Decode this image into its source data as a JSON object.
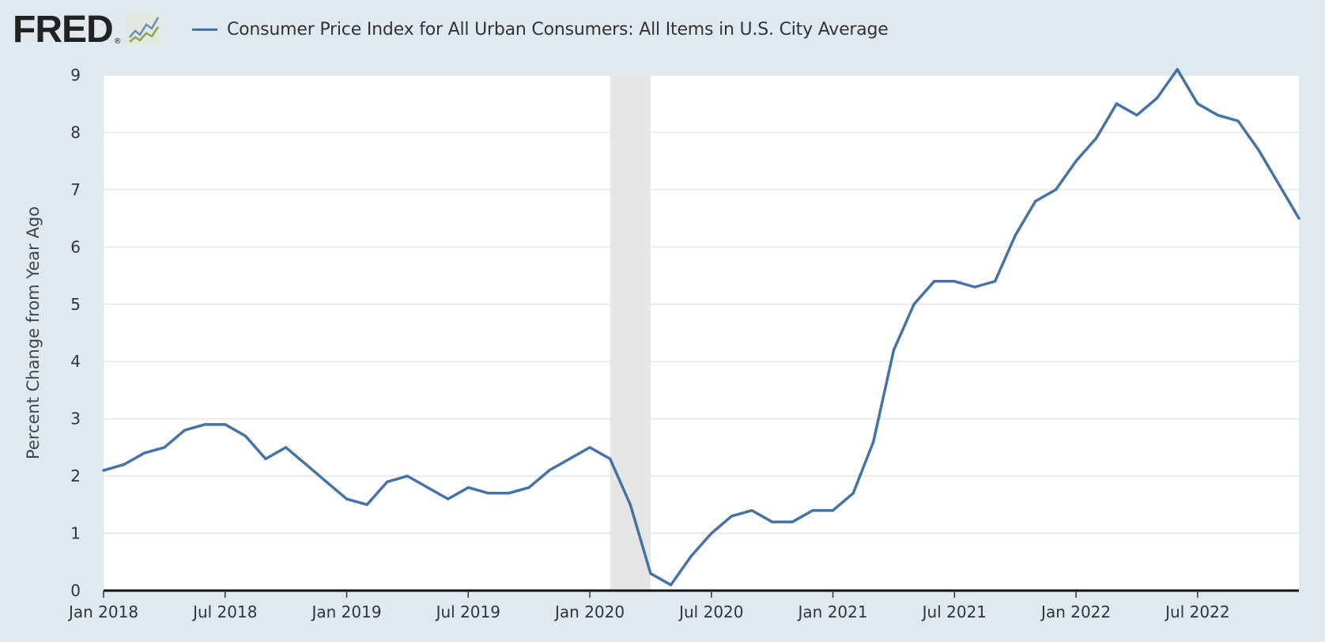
{
  "header": {
    "brand": "FRED",
    "brand_registered": "®",
    "brand_icon": "fred-chart-logo-icon"
  },
  "chart_data": {
    "type": "line",
    "series": [
      {
        "name": "Consumer Price Index for All Urban Consumers: All Items in U.S. City Average",
        "color": "#4572a7",
        "x": [
          "2018-01",
          "2018-02",
          "2018-03",
          "2018-04",
          "2018-05",
          "2018-06",
          "2018-07",
          "2018-08",
          "2018-09",
          "2018-10",
          "2018-11",
          "2018-12",
          "2019-01",
          "2019-02",
          "2019-03",
          "2019-04",
          "2019-05",
          "2019-06",
          "2019-07",
          "2019-08",
          "2019-09",
          "2019-10",
          "2019-11",
          "2019-12",
          "2020-01",
          "2020-02",
          "2020-03",
          "2020-04",
          "2020-05",
          "2020-06",
          "2020-07",
          "2020-08",
          "2020-09",
          "2020-10",
          "2020-11",
          "2020-12",
          "2021-01",
          "2021-02",
          "2021-03",
          "2021-04",
          "2021-05",
          "2021-06",
          "2021-07",
          "2021-08",
          "2021-09",
          "2021-10",
          "2021-11",
          "2021-12",
          "2022-01",
          "2022-02",
          "2022-03",
          "2022-04",
          "2022-05",
          "2022-06",
          "2022-07",
          "2022-08",
          "2022-09",
          "2022-10",
          "2022-11",
          "2022-12"
        ],
        "values": [
          2.1,
          2.2,
          2.4,
          2.5,
          2.8,
          2.9,
          2.9,
          2.7,
          2.3,
          2.5,
          2.2,
          1.9,
          1.6,
          1.5,
          1.9,
          2.0,
          1.8,
          1.6,
          1.8,
          1.7,
          1.7,
          1.8,
          2.1,
          2.3,
          2.5,
          2.3,
          1.5,
          0.3,
          0.1,
          0.6,
          1.0,
          1.3,
          1.4,
          1.2,
          1.2,
          1.4,
          1.4,
          1.7,
          2.6,
          4.2,
          5.0,
          5.4,
          5.4,
          5.3,
          5.4,
          6.2,
          6.8,
          7.0,
          7.5,
          7.9,
          8.5,
          8.3,
          8.6,
          9.1,
          8.5,
          8.3,
          8.2,
          7.7,
          7.1,
          6.5
        ]
      }
    ],
    "ylabel": "Percent Change from Year Ago",
    "ylim": [
      0,
      9
    ],
    "yticks": [
      "0",
      "1",
      "2",
      "3",
      "4",
      "5",
      "6",
      "7",
      "8",
      "9"
    ],
    "xticks": [
      {
        "label": "Jan 2018",
        "date": "2018-01"
      },
      {
        "label": "Jul 2018",
        "date": "2018-07"
      },
      {
        "label": "Jan 2019",
        "date": "2019-01"
      },
      {
        "label": "Jul 2019",
        "date": "2019-07"
      },
      {
        "label": "Jan 2020",
        "date": "2020-01"
      },
      {
        "label": "Jul 2020",
        "date": "2020-07"
      },
      {
        "label": "Jan 2021",
        "date": "2021-01"
      },
      {
        "label": "Jul 2021",
        "date": "2021-07"
      },
      {
        "label": "Jan 2022",
        "date": "2022-01"
      },
      {
        "label": "Jul 2022",
        "date": "2022-07"
      }
    ],
    "recession": {
      "start": "2020-02",
      "end": "2020-04",
      "color": "#e6e6e6"
    },
    "grid": true,
    "legend_position": "top-left"
  }
}
